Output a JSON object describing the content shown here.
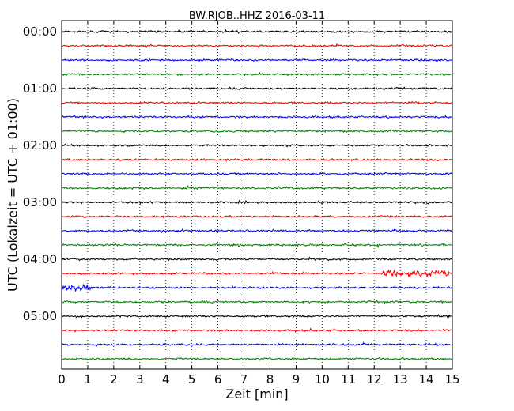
{
  "chart_data": {
    "type": "line",
    "title": "BW.RJOB..HHZ 2016-03-11",
    "xlabel": "Zeit  [min]",
    "ylabel": "UTC (Lokalzeit = UTC + 01:00)",
    "xlim": [
      0,
      15
    ],
    "x_ticks": [
      "0",
      "1",
      "2",
      "3",
      "4",
      "5",
      "6",
      "7",
      "8",
      "9",
      "10",
      "11",
      "12",
      "13",
      "14",
      "15"
    ],
    "y_tick_labels": [
      "00:00",
      "01:00",
      "02:00",
      "03:00",
      "04:00",
      "05:00"
    ],
    "trace_interval_minutes": 15,
    "trace_count": 24,
    "trace_colors": [
      "#000000",
      "#ff0000",
      "#0000ff",
      "#008000"
    ],
    "grid": "vertical dotted lines at each minute",
    "notable_events": [
      {
        "trace_start": "04:15",
        "x_range": [
          12.3,
          15
        ],
        "description": "elevated amplitude"
      },
      {
        "trace_start": "04:30",
        "x_range": [
          0,
          1.2
        ],
        "description": "large burst"
      }
    ]
  }
}
